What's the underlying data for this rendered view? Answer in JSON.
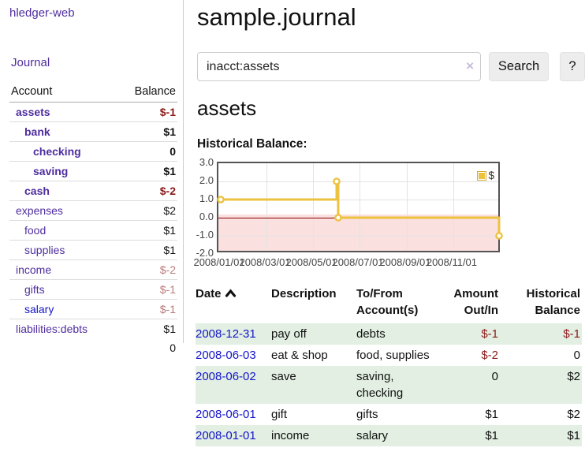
{
  "app": {
    "brand": "hledger-web",
    "nav_journal": "Journal"
  },
  "colors": {
    "purple_link": "#4f2d9f",
    "blue_link": "#1414cc",
    "negative_strong": "#8b1a1a",
    "negative_soft": "#b97979",
    "row_green": "#e2efe2",
    "chart_line": "#edc240",
    "chart_negative_fill": "#fbe0e0",
    "chart_zero_line": "#8b0000"
  },
  "sidebar": {
    "headers": {
      "account": "Account",
      "balance": "Balance"
    },
    "accounts": [
      {
        "name": "assets",
        "indent": 0,
        "bold": true,
        "balance": "$-1",
        "bstyle": "neg"
      },
      {
        "name": "bank",
        "indent": 1,
        "bold": true,
        "balance": "$1",
        "bstyle": "pos"
      },
      {
        "name": "checking",
        "indent": 2,
        "bold": true,
        "balance": "0",
        "bstyle": "pos"
      },
      {
        "name": "saving",
        "indent": 2,
        "bold": true,
        "balance": "$1",
        "bstyle": "pos"
      },
      {
        "name": "cash",
        "indent": 1,
        "bold": true,
        "balance": "$-2",
        "bstyle": "neg"
      },
      {
        "name": "expenses",
        "indent": 0,
        "bold": false,
        "balance": "$2",
        "bstyle": "pos"
      },
      {
        "name": "food",
        "indent": 1,
        "bold": false,
        "balance": "$1",
        "bstyle": "pos"
      },
      {
        "name": "supplies",
        "indent": 1,
        "bold": false,
        "balance": "$1",
        "bstyle": "pos"
      },
      {
        "name": "income",
        "indent": 0,
        "bold": false,
        "balance": "$-2",
        "bstyle": "negsoft"
      },
      {
        "name": "gifts",
        "indent": 1,
        "bold": false,
        "balance": "$-1",
        "bstyle": "negsoft"
      },
      {
        "name": "salary",
        "indent": 1,
        "bold": false,
        "balance": "$-1",
        "bstyle": "negsoft",
        "link_color": "blue"
      },
      {
        "name": "liabilities:debts",
        "indent": 0,
        "bold": false,
        "balance": "$1",
        "bstyle": "pos"
      }
    ],
    "total": "0"
  },
  "header": {
    "title": "sample.journal"
  },
  "search": {
    "value": "inacct:assets",
    "clear_icon": "×",
    "button": "Search",
    "help": "?"
  },
  "account_page": {
    "title": "assets",
    "chart_label": "Historical Balance:"
  },
  "chart_data": {
    "type": "line",
    "step": true,
    "title": "Historical Balance",
    "legend": "$",
    "legend_position": "top-right",
    "grid": true,
    "ylim": [
      -2,
      3
    ],
    "yticks": [
      "3.0",
      "2.0",
      "1.0",
      "0.0",
      "-1.0",
      "-2.0"
    ],
    "xticks": [
      "2008/01/01",
      "2008/03/01",
      "2008/05/01",
      "2008/07/01",
      "2008/09/01",
      "2008/11/01"
    ],
    "x_domain": [
      "2008-01-01",
      "2008-12-31"
    ],
    "series": [
      {
        "name": "$",
        "points": [
          {
            "x": "2008-01-01",
            "y": 1
          },
          {
            "x": "2008-06-01",
            "y": 2
          },
          {
            "x": "2008-06-03",
            "y": 0
          },
          {
            "x": "2008-12-31",
            "y": -1
          }
        ]
      }
    ]
  },
  "register": {
    "headers": [
      {
        "label": "Date",
        "align": "left",
        "sorted": "asc"
      },
      {
        "label": "Description",
        "align": "left"
      },
      {
        "label": "To/From Account(s)",
        "align": "left"
      },
      {
        "label": "Amount Out/In",
        "align": "right"
      },
      {
        "label": "Historical Balance",
        "align": "right"
      }
    ],
    "rows": [
      {
        "date": "2008-12-31",
        "description": "pay off",
        "accounts": "debts",
        "amount": "$-1",
        "amount_neg": true,
        "balance": "$-1",
        "balance_neg": true
      },
      {
        "date": "2008-06-03",
        "description": "eat & shop",
        "accounts": "food, supplies",
        "amount": "$-2",
        "amount_neg": true,
        "balance": "0",
        "balance_neg": false
      },
      {
        "date": "2008-06-02",
        "description": "save",
        "accounts": "saving, checking",
        "amount": "0",
        "amount_neg": false,
        "balance": "$2",
        "balance_neg": false
      },
      {
        "date": "2008-06-01",
        "description": "gift",
        "accounts": "gifts",
        "amount": "$1",
        "amount_neg": false,
        "balance": "$2",
        "balance_neg": false
      },
      {
        "date": "2008-01-01",
        "description": "income",
        "accounts": "salary",
        "amount": "$1",
        "amount_neg": false,
        "balance": "$1",
        "balance_neg": false
      }
    ]
  }
}
